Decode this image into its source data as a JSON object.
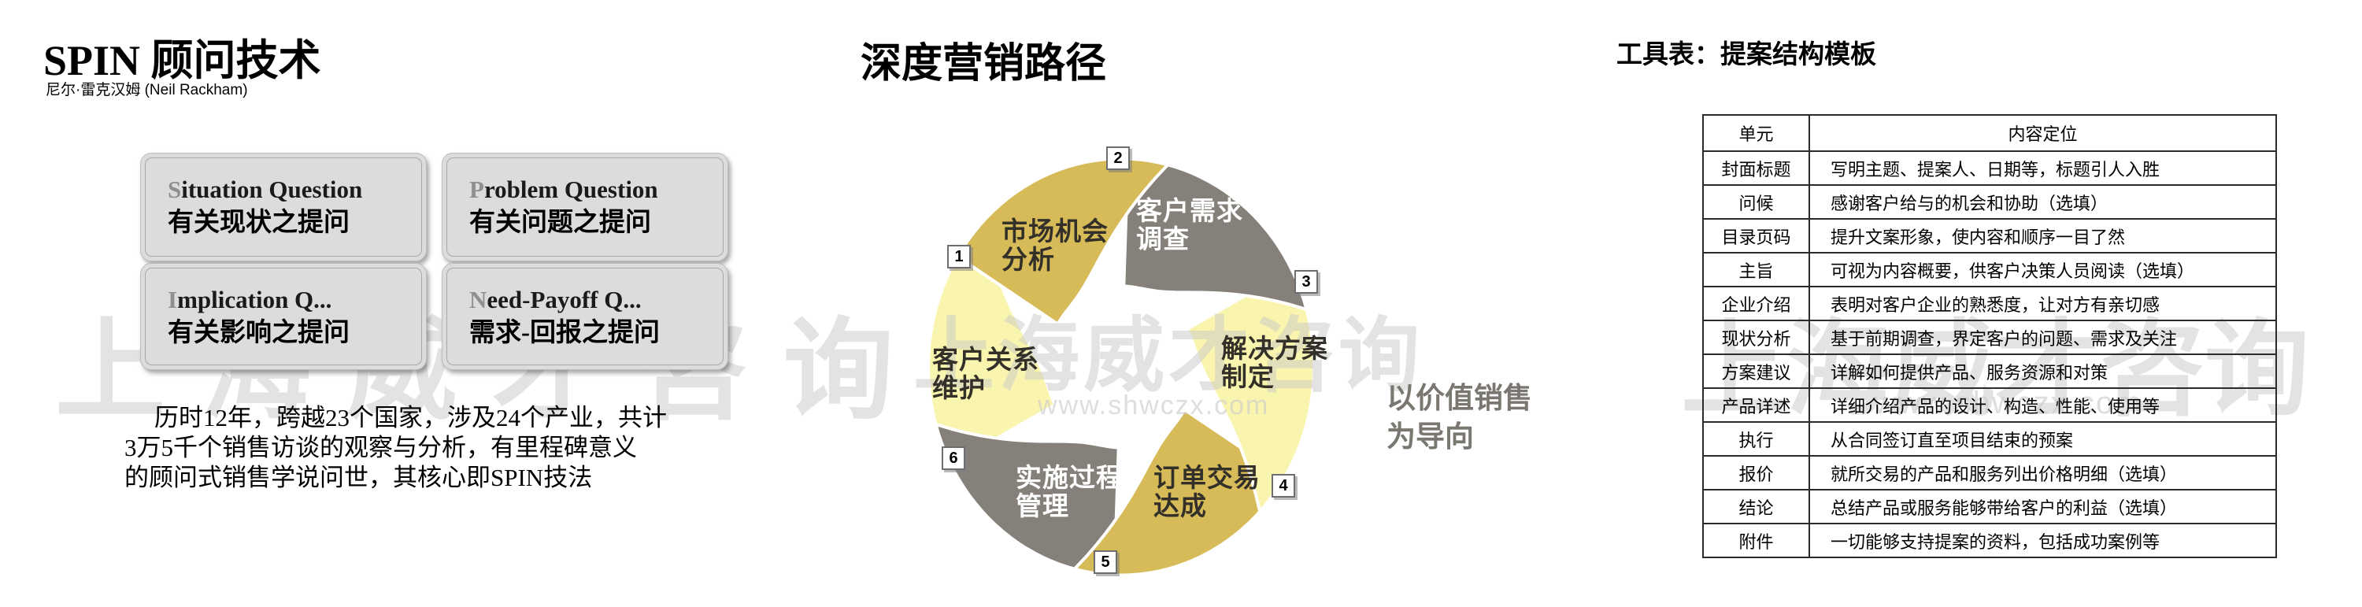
{
  "left": {
    "title": "SPIN 顾问技术",
    "subtitle": "尼尔·雷克汉姆 (Neil Rackham)",
    "boxes": [
      {
        "initial": "S",
        "rest": "ituation Question",
        "cn": "有关现状之提问"
      },
      {
        "initial": "P",
        "rest": "roblem Question",
        "cn": "有关问题之提问"
      },
      {
        "initial": "I",
        "rest": "mplication  Q...",
        "cn": "有关影响之提问"
      },
      {
        "initial": "N",
        "rest": "eed-Payoff  Q...",
        "cn": "需求-回报之提问"
      }
    ],
    "paragraph": [
      "历时12年，跨越23个国家，涉及24个产业，共计",
      "3万5千个销售访谈的观察与分析，有里程碑意义",
      "的顾问式销售学说问世，其核心即SPIN技法"
    ]
  },
  "middle": {
    "title": "深度营销路径",
    "caption": [
      "以价值销售",
      "为导向"
    ],
    "colors": {
      "gold": "#d6bb58",
      "pale": "#faf5ae",
      "gray": "#85807a",
      "dark_text": "#33302a",
      "light_text": "#ffffff"
    },
    "segments": [
      {
        "num": "1",
        "label": [
          "市场机会",
          "分析"
        ],
        "color": "gold",
        "text": "dark"
      },
      {
        "num": "2",
        "label": [
          "客户需求",
          "调查"
        ],
        "color": "gray",
        "text": "light"
      },
      {
        "num": "3",
        "label": [
          "解决方案",
          "制定"
        ],
        "color": "pale",
        "text": "dark"
      },
      {
        "num": "4",
        "label": [
          "订单交易",
          "达成"
        ],
        "color": "gold",
        "text": "dark"
      },
      {
        "num": "5",
        "label": [
          "实施过程",
          "管理"
        ],
        "color": "gray",
        "text": "light"
      },
      {
        "num": "6",
        "label": [
          "客户关系",
          "维护"
        ],
        "color": "pale",
        "text": "dark"
      }
    ]
  },
  "right": {
    "title": "工具表：提案结构模板",
    "table": {
      "headers": [
        "单元",
        "内容定位"
      ],
      "rows": [
        [
          "封面标题",
          "写明主题、提案人、日期等，标题引人入胜"
        ],
        [
          "问候",
          "感谢客户给与的机会和协助（选填）"
        ],
        [
          "目录页码",
          "提升文案形象，使内容和顺序一目了然"
        ],
        [
          "主旨",
          "可视为内容概要，供客户决策人员阅读（选填）"
        ],
        [
          "企业介绍",
          "表明对客户企业的熟悉度，让对方有亲切感"
        ],
        [
          "现状分析",
          "基于前期调查，界定客户的问题、需求及关注"
        ],
        [
          "方案建议",
          "详解如何提供产品、服务资源和对策"
        ],
        [
          "产品详述",
          "详细介绍产品的设计、构造、性能、使用等"
        ],
        [
          "执行",
          "从合同签订直至项目结束的预案"
        ],
        [
          "报价",
          "就所交易的产品和服务列出价格明细（选填）"
        ],
        [
          "结论",
          "总结产品或服务能够带给客户的利益（选填）"
        ],
        [
          "附件",
          "一切能够支持提案的资料，包括成功案例等"
        ]
      ]
    }
  },
  "watermark": {
    "text": "上海威才咨询",
    "url": "www.shwczx.com"
  }
}
